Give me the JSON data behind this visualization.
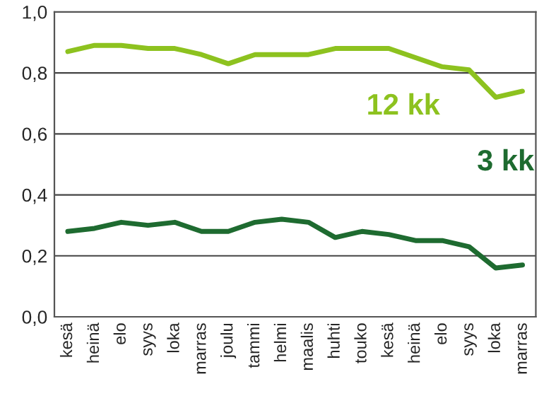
{
  "chart_data": {
    "type": "line",
    "categories": [
      "kesä",
      "heinä",
      "elo",
      "syys",
      "loka",
      "marras",
      "joulu",
      "tammi",
      "helmi",
      "maalis",
      "huhti",
      "touko",
      "kesä",
      "heinä",
      "elo",
      "syys",
      "loka",
      "marras"
    ],
    "series": [
      {
        "name": "12 kk",
        "color": "#8dc21f",
        "values": [
          0.87,
          0.89,
          0.89,
          0.88,
          0.88,
          0.86,
          0.83,
          0.86,
          0.86,
          0.86,
          0.88,
          0.88,
          0.88,
          0.85,
          0.82,
          0.81,
          0.72,
          0.74
        ]
      },
      {
        "name": "3 kk",
        "color": "#1e6b30",
        "values": [
          0.28,
          0.29,
          0.31,
          0.3,
          0.31,
          0.28,
          0.28,
          0.31,
          0.32,
          0.31,
          0.26,
          0.28,
          0.27,
          0.25,
          0.25,
          0.23,
          0.16,
          0.17
        ]
      }
    ],
    "ylim": [
      0,
      1.0
    ],
    "yticks": [
      {
        "value": 0,
        "label": "0,0"
      },
      {
        "value": 0.2,
        "label": "0,2"
      },
      {
        "value": 0.4,
        "label": "0,4"
      },
      {
        "value": 0.6,
        "label": "0,6"
      },
      {
        "value": 0.8,
        "label": "0,8"
      },
      {
        "value": 1.0,
        "label": "1,0"
      }
    ],
    "grid": "y",
    "legend": false,
    "marker": "none",
    "line_style": "solid"
  }
}
